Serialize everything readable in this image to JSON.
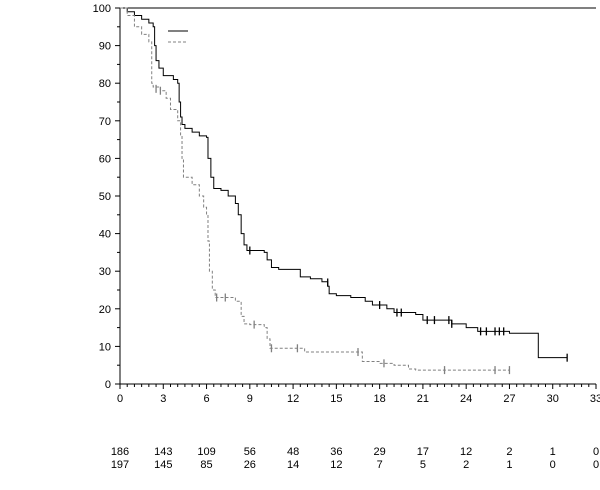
{
  "chart_data": {
    "type": "line",
    "subtype": "kaplan-meier",
    "title": "",
    "xlabel": "",
    "ylabel": "",
    "xlim": [
      0,
      33
    ],
    "ylim": [
      0,
      100
    ],
    "xticks": [
      0,
      3,
      6,
      9,
      12,
      15,
      18,
      21,
      24,
      27,
      30,
      33
    ],
    "yticks": [
      0,
      10,
      20,
      30,
      40,
      50,
      60,
      70,
      80,
      90,
      100
    ],
    "legend_placement": "top-left",
    "series": [
      {
        "name": "",
        "style": "solid",
        "color": "#000000",
        "steps": [
          [
            0,
            100
          ],
          [
            0.5,
            99
          ],
          [
            1,
            98
          ],
          [
            1.5,
            97
          ],
          [
            2,
            96
          ],
          [
            2.3,
            95
          ],
          [
            2.4,
            90
          ],
          [
            2.5,
            86
          ],
          [
            2.7,
            84
          ],
          [
            3,
            82
          ],
          [
            3.7,
            81
          ],
          [
            4.0,
            80
          ],
          [
            4.1,
            75
          ],
          [
            4.2,
            71
          ],
          [
            4.3,
            69
          ],
          [
            4.5,
            68
          ],
          [
            5.0,
            67
          ],
          [
            5.5,
            66
          ],
          [
            6.0,
            65.6
          ],
          [
            6.1,
            60
          ],
          [
            6.3,
            55
          ],
          [
            6.5,
            52
          ],
          [
            7.0,
            51.5
          ],
          [
            7.5,
            50
          ],
          [
            8.0,
            48
          ],
          [
            8.2,
            45
          ],
          [
            8.4,
            40
          ],
          [
            8.6,
            37
          ],
          [
            8.8,
            35.5
          ],
          [
            10.0,
            35
          ],
          [
            10.2,
            33
          ],
          [
            10.5,
            31
          ],
          [
            11.0,
            30.5
          ],
          [
            12.5,
            28.5
          ],
          [
            13.2,
            28
          ],
          [
            14.0,
            27.2
          ],
          [
            14.4,
            26
          ],
          [
            14.5,
            24
          ],
          [
            15.0,
            23.5
          ],
          [
            16.0,
            23
          ],
          [
            17.0,
            22
          ],
          [
            17.5,
            21
          ],
          [
            18.5,
            20
          ],
          [
            19.0,
            19
          ],
          [
            20.5,
            18.5
          ],
          [
            21.0,
            17
          ],
          [
            23.0,
            16
          ],
          [
            24.0,
            15
          ],
          [
            24.8,
            14
          ],
          [
            27.0,
            13.5
          ],
          [
            29.0,
            7
          ],
          [
            31.0,
            7
          ]
        ],
        "censored": [
          [
            9.0,
            35.5
          ],
          [
            14.4,
            27
          ],
          [
            18.0,
            21
          ],
          [
            19.2,
            19
          ],
          [
            19.5,
            19
          ],
          [
            21.3,
            17
          ],
          [
            21.8,
            17
          ],
          [
            22.8,
            17
          ],
          [
            23.0,
            16
          ],
          [
            25.0,
            14
          ],
          [
            25.4,
            14
          ],
          [
            26.0,
            14
          ],
          [
            26.3,
            14
          ],
          [
            26.6,
            14
          ],
          [
            31.0,
            7
          ]
        ]
      },
      {
        "name": "",
        "style": "dashed",
        "color": "#808080",
        "steps": [
          [
            0,
            100
          ],
          [
            0.5,
            98
          ],
          [
            1,
            95
          ],
          [
            1.5,
            93
          ],
          [
            2.0,
            91
          ],
          [
            2.2,
            80
          ],
          [
            2.3,
            79
          ],
          [
            2.8,
            78
          ],
          [
            3.2,
            76
          ],
          [
            3.5,
            73
          ],
          [
            4.0,
            70
          ],
          [
            4.2,
            66
          ],
          [
            4.3,
            60
          ],
          [
            4.4,
            55
          ],
          [
            5.0,
            53
          ],
          [
            5.5,
            50
          ],
          [
            5.8,
            47
          ],
          [
            6.0,
            45
          ],
          [
            6.1,
            38
          ],
          [
            6.2,
            30
          ],
          [
            6.4,
            25
          ],
          [
            6.6,
            23
          ],
          [
            8.0,
            22
          ],
          [
            8.4,
            18
          ],
          [
            8.6,
            16
          ],
          [
            9.0,
            15.8
          ],
          [
            10.0,
            15
          ],
          [
            10.2,
            12
          ],
          [
            10.4,
            9.5
          ],
          [
            12.8,
            8.5
          ],
          [
            16.8,
            6
          ],
          [
            18.0,
            5.5
          ],
          [
            19.0,
            5
          ],
          [
            20.0,
            4
          ],
          [
            20.5,
            3.7
          ],
          [
            27.0,
            3.7
          ]
        ],
        "censored": [
          [
            2.5,
            78.5
          ],
          [
            2.8,
            78
          ],
          [
            6.7,
            23
          ],
          [
            7.3,
            23
          ],
          [
            9.3,
            15.8
          ],
          [
            10.5,
            9.5
          ],
          [
            12.3,
            9.5
          ],
          [
            16.5,
            8.5
          ],
          [
            18.3,
            5.5
          ],
          [
            22.5,
            3.7
          ],
          [
            26.0,
            3.7
          ],
          [
            27.0,
            3.7
          ]
        ]
      }
    ],
    "risk_table": {
      "times": [
        0,
        3,
        6,
        9,
        12,
        15,
        18,
        21,
        24,
        27,
        30,
        33
      ],
      "rows": [
        [
          186,
          143,
          109,
          56,
          48,
          36,
          29,
          17,
          12,
          2,
          1,
          0
        ],
        [
          197,
          145,
          85,
          26,
          14,
          12,
          7,
          5,
          2,
          1,
          0,
          0
        ]
      ]
    }
  }
}
